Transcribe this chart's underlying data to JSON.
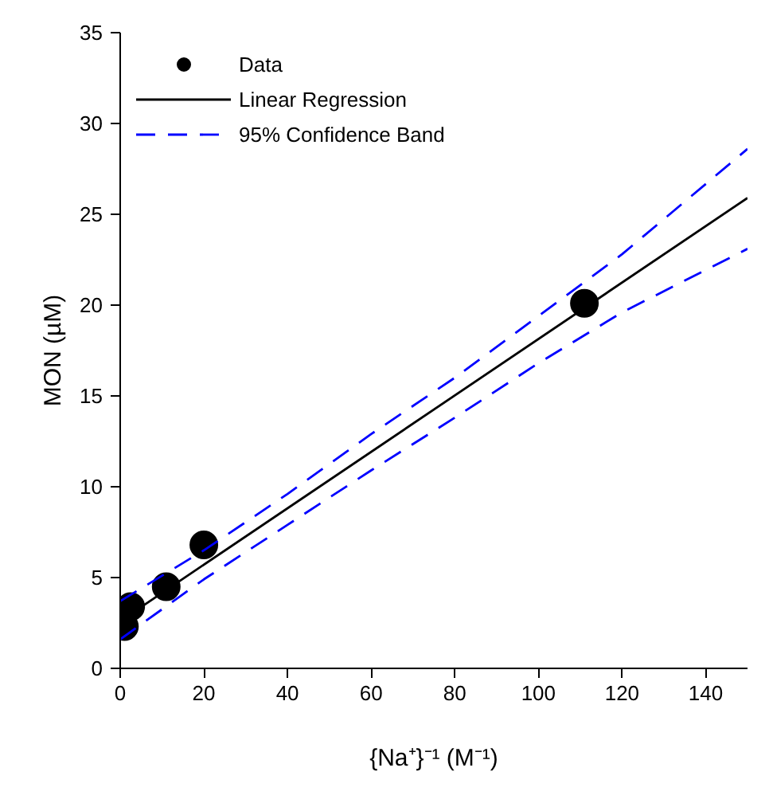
{
  "chart_data": {
    "type": "scatter",
    "xlabel": "{Na⁺}⁻¹ (M⁻¹)",
    "ylabel": "MON (µM)",
    "xlim": [
      0,
      150
    ],
    "ylim": [
      0,
      35
    ],
    "xticks": [
      0,
      20,
      40,
      60,
      80,
      100,
      120,
      140
    ],
    "yticks": [
      0,
      5,
      10,
      15,
      20,
      25,
      30,
      35
    ],
    "grid": false,
    "legend": "top left",
    "series": [
      {
        "name": "Data",
        "marker": "circle",
        "color": "#000000",
        "x": [
          1,
          2.5,
          11,
          20,
          111
        ],
        "values": [
          2.3,
          3.4,
          4.5,
          6.8,
          20.1
        ]
      },
      {
        "name": "Linear Regression",
        "type": "line",
        "line_style": "solid",
        "color": "#000000",
        "x": [
          0,
          150
        ],
        "values": [
          2.6,
          25.9
        ]
      },
      {
        "name": "95% Confidence Band",
        "type": "line",
        "line_style": "dashed",
        "color": "#0000ff",
        "x": [
          0,
          20,
          40,
          60,
          80,
          100,
          120,
          150
        ],
        "values": [
          3.7,
          6.5,
          9.6,
          12.9,
          16.0,
          19.4,
          22.8,
          28.6
        ]
      },
      {
        "type": "line",
        "line_style": "dashed",
        "color": "#0000ff",
        "x": [
          0,
          20,
          40,
          60,
          80,
          100,
          120,
          150
        ],
        "values": [
          1.6,
          4.9,
          7.9,
          10.9,
          13.8,
          16.8,
          19.6,
          23.1
        ]
      }
    ]
  }
}
